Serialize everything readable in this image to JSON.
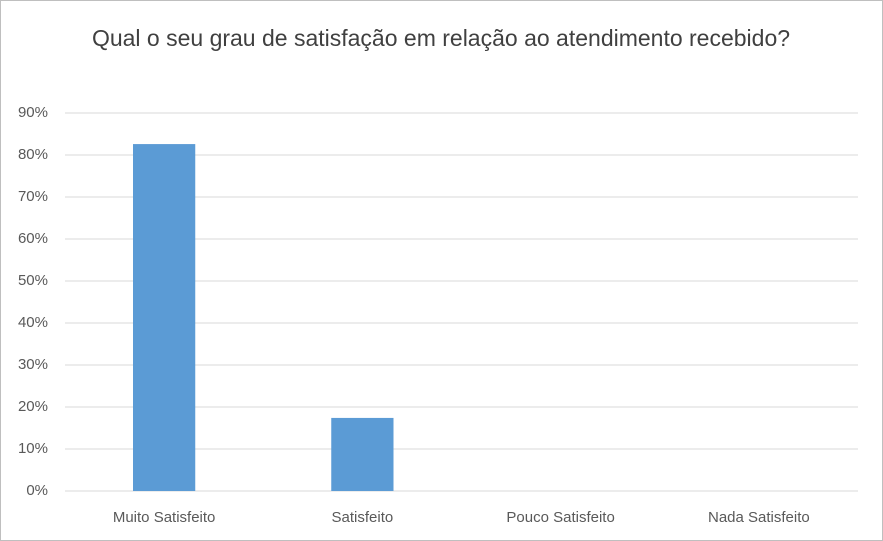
{
  "chart_data": {
    "type": "bar",
    "title": "Qual o seu grau de satisfação em relação ao atendimento recebido?",
    "categories": [
      "Muito Satisfeito",
      "Satisfeito",
      "Pouco Satisfeito",
      "Nada Satisfeito"
    ],
    "values": [
      82.6,
      17.4,
      0,
      0
    ],
    "color": "#5b9bd5",
    "ylim": [
      0,
      90
    ],
    "yticks": [
      {
        "value": 0,
        "label": "0%"
      },
      {
        "value": 10,
        "label": "10%"
      },
      {
        "value": 20,
        "label": "20%"
      },
      {
        "value": 30,
        "label": "30%"
      },
      {
        "value": 40,
        "label": "40%"
      },
      {
        "value": 50,
        "label": "50%"
      },
      {
        "value": 60,
        "label": "60%"
      },
      {
        "value": 70,
        "label": "70%"
      },
      {
        "value": 80,
        "label": "80%"
      },
      {
        "value": 90,
        "label": "90%"
      }
    ],
    "grid": true
  }
}
